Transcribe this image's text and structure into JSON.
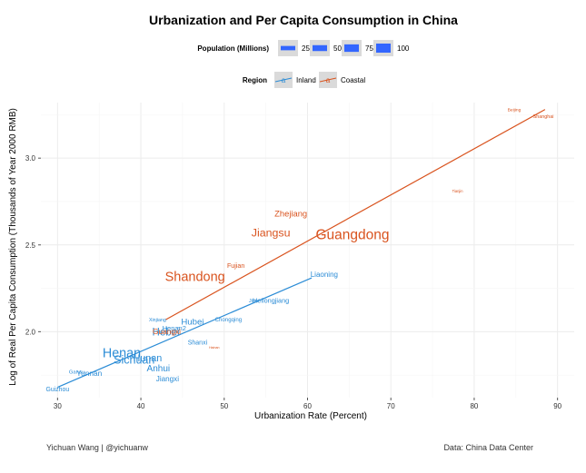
{
  "chart_data": {
    "type": "scatter",
    "title": "Urbanization and Per Capita Consumption in China",
    "xlabel": "Urbanization Rate (Percent)",
    "ylabel": "Log of Real Per Capita Consumption (Thousands of Year 2000 RMB)",
    "xlim": [
      28,
      92
    ],
    "ylim": [
      1.62,
      3.32
    ],
    "xticks": [
      "30",
      "40",
      "50",
      "60",
      "70",
      "80",
      "90"
    ],
    "yticks": [
      "2.0",
      "2.5",
      "3.0"
    ],
    "grid": true,
    "legend_population": {
      "title": "Population (Millions)",
      "items": [
        "25",
        "50",
        "75",
        "100"
      ]
    },
    "legend_region": {
      "title": "Region",
      "items": [
        "Inland",
        "Coastal"
      ],
      "key_glyph": "a"
    },
    "colors": {
      "Inland": "#2b8cd6",
      "Coastal": "#d9531e"
    },
    "series": [
      {
        "name": "Inland",
        "points": [
          {
            "label": "Guizhou",
            "x": 30.0,
            "y": 1.67,
            "pop": 35
          },
          {
            "label": "Gansu",
            "x": 32.3,
            "y": 1.77,
            "pop": 26
          },
          {
            "label": "Yunnan",
            "x": 33.8,
            "y": 1.76,
            "pop": 46
          },
          {
            "label": "Henan",
            "x": 37.7,
            "y": 1.88,
            "pop": 94
          },
          {
            "label": "Sichuan",
            "x": 39.2,
            "y": 1.84,
            "pop": 80
          },
          {
            "label": "Hunan",
            "x": 40.8,
            "y": 1.85,
            "pop": 66
          },
          {
            "label": "Anhui",
            "x": 42.1,
            "y": 1.79,
            "pop": 60
          },
          {
            "label": "Jiangxi",
            "x": 43.2,
            "y": 1.73,
            "pop": 45
          },
          {
            "label": "Xinjiang",
            "x": 42.0,
            "y": 2.07,
            "pop": 22
          },
          {
            "label": "Hebei",
            "x": 43.0,
            "y": 2.0,
            "pop": 72
          },
          {
            "label": "Henan2",
            "x": 44.0,
            "y": 2.02,
            "pop": 40
          },
          {
            "label": "Hubei",
            "x": 46.2,
            "y": 2.06,
            "pop": 57
          },
          {
            "label": "Shanxi",
            "x": 46.8,
            "y": 1.94,
            "pop": 36
          },
          {
            "label": "Chongqing",
            "x": 50.5,
            "y": 2.07,
            "pop": 29
          },
          {
            "label": "Jilin",
            "x": 53.5,
            "y": 2.18,
            "pop": 27
          },
          {
            "label": "Heilongjiang",
            "x": 55.6,
            "y": 2.18,
            "pop": 38
          },
          {
            "label": "Liaoning",
            "x": 62.0,
            "y": 2.33,
            "pop": 44
          }
        ]
      },
      {
        "name": "Coastal",
        "points": [
          {
            "label": "Hainan",
            "x": 48.8,
            "y": 1.91,
            "pop": 9
          },
          {
            "label": "Guangxi",
            "x": 43.1,
            "y": 2.0,
            "pop": 46
          },
          {
            "label": "Shandong",
            "x": 46.5,
            "y": 2.32,
            "pop": 96
          },
          {
            "label": "Fujian",
            "x": 51.4,
            "y": 2.38,
            "pop": 37
          },
          {
            "label": "Jiangsu",
            "x": 55.6,
            "y": 2.57,
            "pop": 79
          },
          {
            "label": "Zhejiang",
            "x": 58.0,
            "y": 2.68,
            "pop": 55
          },
          {
            "label": "Guangdong",
            "x": 65.4,
            "y": 2.56,
            "pop": 104
          },
          {
            "label": "Tianjin",
            "x": 78.0,
            "y": 2.81,
            "pop": 13
          },
          {
            "label": "Beijing",
            "x": 84.8,
            "y": 3.28,
            "pop": 19
          },
          {
            "label": "Shanghai",
            "x": 88.3,
            "y": 3.24,
            "pop": 23
          }
        ]
      }
    ],
    "fit_lines": [
      {
        "name": "Inland",
        "x": [
          30,
          60.5
        ],
        "y": [
          1.68,
          2.31
        ]
      },
      {
        "name": "Coastal",
        "x": [
          43,
          88.5
        ],
        "y": [
          2.07,
          3.28
        ]
      }
    ]
  },
  "footer": {
    "author": "Yichuan Wang | @yichuanw",
    "source": "Data: China Data Center"
  }
}
